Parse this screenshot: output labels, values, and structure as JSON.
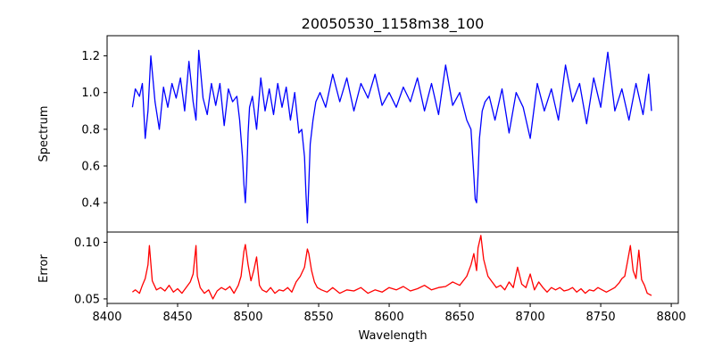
{
  "chart_data": [
    {
      "type": "line",
      "title": "20050530_1158m38_100",
      "ylabel": "Spectrum",
      "xlabel": "",
      "xlim": [
        8400,
        8805
      ],
      "ylim": [
        0.24,
        1.31
      ],
      "yticks": [
        0.4,
        0.6,
        0.8,
        1.0,
        1.2
      ],
      "ytick_labels": [
        "0.4",
        "0.6",
        "0.8",
        "1.0",
        "1.2"
      ],
      "grid": false,
      "series": [
        {
          "color": "#0000ff",
          "x": [
            8418,
            8420,
            8423,
            8425,
            8427,
            8429,
            8431,
            8434,
            8437,
            8440,
            8443,
            8446,
            8449,
            8452,
            8455,
            8458,
            8461,
            8463,
            8465,
            8468,
            8471,
            8474,
            8477,
            8480,
            8483,
            8486,
            8489,
            8492,
            8494,
            8496,
            8497,
            8498,
            8499,
            8500,
            8501,
            8503,
            8506,
            8509,
            8512,
            8515,
            8518,
            8521,
            8524,
            8527,
            8530,
            8533,
            8536,
            8538,
            8540,
            8541,
            8542,
            8543,
            8544,
            8546,
            8548,
            8551,
            8555,
            8560,
            8565,
            8570,
            8575,
            8580,
            8585,
            8590,
            8595,
            8600,
            8605,
            8610,
            8615,
            8620,
            8625,
            8630,
            8635,
            8640,
            8645,
            8650,
            8655,
            8658,
            8660,
            8661,
            8662,
            8663,
            8664,
            8666,
            8668,
            8671,
            8675,
            8680,
            8685,
            8690,
            8695,
            8700,
            8705,
            8710,
            8715,
            8720,
            8725,
            8730,
            8735,
            8740,
            8745,
            8750,
            8755,
            8760,
            8765,
            8770,
            8775,
            8780,
            8784,
            8786
          ],
          "values": [
            0.92,
            1.02,
            0.98,
            1.05,
            0.75,
            0.9,
            1.2,
            0.95,
            0.8,
            1.03,
            0.92,
            1.05,
            0.97,
            1.08,
            0.9,
            1.17,
            0.95,
            0.85,
            1.23,
            0.97,
            0.88,
            1.05,
            0.93,
            1.05,
            0.82,
            1.02,
            0.95,
            0.98,
            0.85,
            0.65,
            0.5,
            0.4,
            0.55,
            0.78,
            0.92,
            0.98,
            0.8,
            1.08,
            0.9,
            1.02,
            0.88,
            1.05,
            0.92,
            1.03,
            0.85,
            1.0,
            0.78,
            0.8,
            0.65,
            0.45,
            0.29,
            0.5,
            0.72,
            0.85,
            0.95,
            1.0,
            0.92,
            1.1,
            0.95,
            1.08,
            0.9,
            1.05,
            0.97,
            1.1,
            0.93,
            1.0,
            0.92,
            1.03,
            0.95,
            1.08,
            0.9,
            1.05,
            0.88,
            1.15,
            0.93,
            1.0,
            0.85,
            0.8,
            0.55,
            0.42,
            0.4,
            0.55,
            0.75,
            0.9,
            0.95,
            0.98,
            0.85,
            1.02,
            0.78,
            1.0,
            0.92,
            0.75,
            1.05,
            0.9,
            1.02,
            0.85,
            1.15,
            0.95,
            1.05,
            0.83,
            1.08,
            0.92,
            1.22,
            0.9,
            1.02,
            0.85,
            1.05,
            0.88,
            1.1,
            0.9
          ]
        }
      ]
    },
    {
      "type": "line",
      "title": "",
      "ylabel": "Error",
      "xlabel": "Wavelength",
      "xlim": [
        8400,
        8805
      ],
      "ylim": [
        0.046,
        0.109
      ],
      "yticks": [
        0.05,
        0.1
      ],
      "ytick_labels": [
        "0.05",
        "0.10"
      ],
      "xticks": [
        8400,
        8450,
        8500,
        8550,
        8600,
        8650,
        8700,
        8750,
        8800
      ],
      "xtick_labels": [
        "8400",
        "8450",
        "8500",
        "8550",
        "8600",
        "8650",
        "8700",
        "8750",
        "8800"
      ],
      "grid": false,
      "series": [
        {
          "color": "#ff0000",
          "x": [
            8418,
            8420,
            8423,
            8425,
            8427,
            8429,
            8430,
            8432,
            8435,
            8438,
            8441,
            8444,
            8447,
            8450,
            8453,
            8456,
            8459,
            8461,
            8463,
            8464,
            8466,
            8469,
            8472,
            8475,
            8478,
            8481,
            8484,
            8487,
            8490,
            8493,
            8495,
            8497,
            8498,
            8500,
            8502,
            8504,
            8506,
            8508,
            8510,
            8513,
            8516,
            8519,
            8522,
            8525,
            8528,
            8531,
            8534,
            8537,
            8540,
            8542,
            8543,
            8545,
            8547,
            8549,
            8552,
            8556,
            8560,
            8565,
            8570,
            8575,
            8580,
            8585,
            8590,
            8595,
            8600,
            8605,
            8610,
            8615,
            8620,
            8625,
            8630,
            8635,
            8640,
            8645,
            8650,
            8655,
            8658,
            8660,
            8662,
            8663,
            8665,
            8667,
            8670,
            8673,
            8676,
            8679,
            8682,
            8685,
            8688,
            8691,
            8694,
            8697,
            8700,
            8703,
            8706,
            8709,
            8712,
            8715,
            8718,
            8721,
            8724,
            8727,
            8730,
            8733,
            8736,
            8739,
            8742,
            8745,
            8748,
            8751,
            8754,
            8757,
            8760,
            8763,
            8765,
            8767,
            8769,
            8771,
            8773,
            8775,
            8777,
            8779,
            8781,
            8783,
            8786
          ],
          "values": [
            0.056,
            0.058,
            0.055,
            0.062,
            0.068,
            0.08,
            0.097,
            0.066,
            0.058,
            0.06,
            0.057,
            0.062,
            0.056,
            0.059,
            0.055,
            0.06,
            0.065,
            0.072,
            0.097,
            0.07,
            0.06,
            0.055,
            0.058,
            0.05,
            0.057,
            0.06,
            0.058,
            0.061,
            0.055,
            0.062,
            0.07,
            0.092,
            0.098,
            0.08,
            0.066,
            0.075,
            0.087,
            0.062,
            0.058,
            0.056,
            0.06,
            0.055,
            0.058,
            0.057,
            0.06,
            0.056,
            0.065,
            0.07,
            0.078,
            0.094,
            0.09,
            0.075,
            0.065,
            0.06,
            0.058,
            0.056,
            0.06,
            0.055,
            0.058,
            0.057,
            0.06,
            0.055,
            0.058,
            0.056,
            0.06,
            0.058,
            0.061,
            0.057,
            0.059,
            0.062,
            0.058,
            0.06,
            0.061,
            0.065,
            0.062,
            0.07,
            0.08,
            0.09,
            0.075,
            0.095,
            0.106,
            0.085,
            0.07,
            0.065,
            0.06,
            0.062,
            0.058,
            0.065,
            0.06,
            0.078,
            0.063,
            0.06,
            0.072,
            0.058,
            0.065,
            0.06,
            0.056,
            0.06,
            0.058,
            0.06,
            0.057,
            0.058,
            0.06,
            0.056,
            0.059,
            0.055,
            0.058,
            0.057,
            0.06,
            0.058,
            0.056,
            0.058,
            0.06,
            0.064,
            0.068,
            0.07,
            0.083,
            0.097,
            0.075,
            0.068,
            0.093,
            0.067,
            0.062,
            0.055,
            0.053
          ]
        }
      ]
    }
  ]
}
